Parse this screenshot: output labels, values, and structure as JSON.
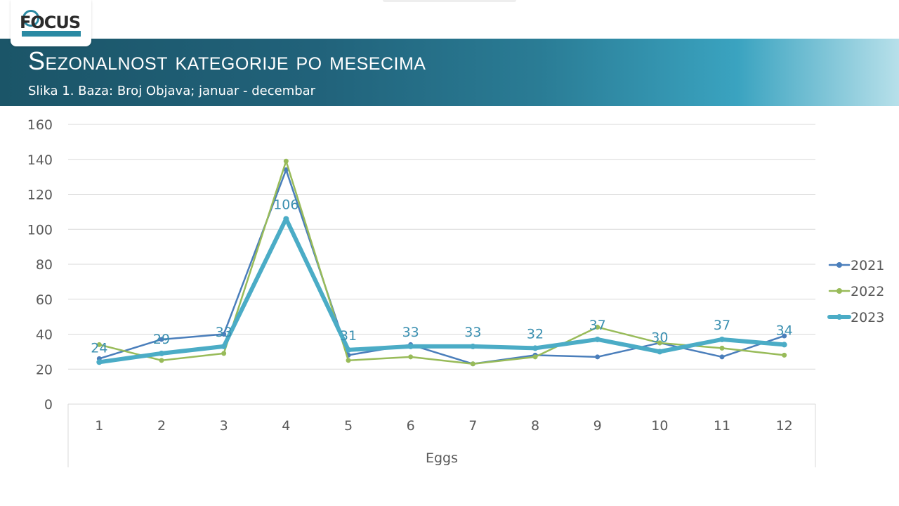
{
  "header": {
    "logo_text": "FOCUS",
    "title": "Sezonalnost kategorije po mesecima",
    "subtitle": "Slika 1. Baza: Broj Objava; januar - decembar"
  },
  "chart_data": {
    "type": "line",
    "title": "",
    "xlabel": "Eggs",
    "ylabel": "",
    "ylim": [
      0,
      160
    ],
    "yticks": [
      0,
      20,
      40,
      60,
      80,
      100,
      120,
      140,
      160
    ],
    "categories": [
      "1",
      "2",
      "3",
      "4",
      "5",
      "6",
      "7",
      "8",
      "9",
      "10",
      "11",
      "12"
    ],
    "grid": true,
    "legend_position": "right",
    "series": [
      {
        "name": "2021",
        "color": "#4a7ebb",
        "values": [
          26,
          37,
          40,
          134,
          28,
          34,
          23,
          28,
          27,
          35,
          27,
          39
        ],
        "show_labels": false
      },
      {
        "name": "2022",
        "color": "#98bb59",
        "values": [
          34,
          25,
          29,
          139,
          25,
          27,
          23,
          27,
          44,
          35,
          32,
          28
        ],
        "show_labels": false
      },
      {
        "name": "2023",
        "color": "#4bacc6",
        "values": [
          24,
          29,
          33,
          106,
          31,
          33,
          33,
          32,
          37,
          30,
          37,
          34
        ],
        "show_labels": true
      }
    ]
  }
}
